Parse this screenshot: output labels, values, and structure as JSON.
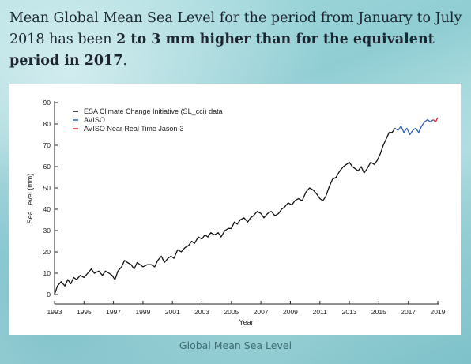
{
  "intro": {
    "text_a": "Mean Global Mean Sea Level for the period from January to July 2018 has been ",
    "text_bold": "2 to 3 mm higher than for the equivalent period in 2017",
    "text_end": "."
  },
  "caption": "Global Mean Sea Level",
  "chart_data": {
    "type": "line",
    "title": "",
    "xlabel": "Year",
    "ylabel": "Sea Level (mm)",
    "xlim": [
      1993,
      2019
    ],
    "ylim": [
      0,
      90
    ],
    "x_ticks": [
      "1993",
      "1995",
      "1997",
      "1999",
      "2001",
      "2003",
      "2005",
      "2007",
      "2009",
      "2011",
      "2013",
      "2015",
      "2017",
      "2019"
    ],
    "y_ticks": [
      "0",
      "10",
      "20",
      "30",
      "40",
      "50",
      "60",
      "70",
      "80",
      "90"
    ],
    "grid": false,
    "legend_position": "top-left",
    "series": [
      {
        "name": "ESA Climate Change Initiative (SL_cci) data",
        "color": "#111111",
        "points": [
          [
            1993.0,
            0
          ],
          [
            1993.2,
            4
          ],
          [
            1993.45,
            6
          ],
          [
            1993.7,
            4
          ],
          [
            1993.9,
            7
          ],
          [
            1994.1,
            5
          ],
          [
            1994.3,
            8
          ],
          [
            1994.5,
            7
          ],
          [
            1994.75,
            9
          ],
          [
            1995.0,
            8
          ],
          [
            1995.25,
            10
          ],
          [
            1995.5,
            12
          ],
          [
            1995.7,
            10
          ],
          [
            1996.0,
            11
          ],
          [
            1996.25,
            9
          ],
          [
            1996.45,
            11
          ],
          [
            1996.7,
            10
          ],
          [
            1996.9,
            9
          ],
          [
            1997.1,
            7
          ],
          [
            1997.3,
            11
          ],
          [
            1997.55,
            13
          ],
          [
            1997.75,
            16
          ],
          [
            1997.95,
            15
          ],
          [
            1998.2,
            14
          ],
          [
            1998.4,
            12
          ],
          [
            1998.6,
            15
          ],
          [
            1998.8,
            14
          ],
          [
            1999.0,
            13
          ],
          [
            1999.3,
            14
          ],
          [
            1999.55,
            14
          ],
          [
            1999.8,
            13
          ],
          [
            2000.0,
            16
          ],
          [
            2000.25,
            18
          ],
          [
            2000.45,
            15
          ],
          [
            2000.7,
            17
          ],
          [
            2000.9,
            18
          ],
          [
            2001.1,
            17
          ],
          [
            2001.35,
            21
          ],
          [
            2001.6,
            20
          ],
          [
            2001.85,
            22
          ],
          [
            2002.1,
            23
          ],
          [
            2002.3,
            25
          ],
          [
            2002.5,
            24
          ],
          [
            2002.75,
            27
          ],
          [
            2003.0,
            26
          ],
          [
            2003.2,
            28
          ],
          [
            2003.4,
            27
          ],
          [
            2003.6,
            29
          ],
          [
            2003.85,
            28
          ],
          [
            2004.1,
            29
          ],
          [
            2004.3,
            27
          ],
          [
            2004.55,
            30
          ],
          [
            2004.8,
            31
          ],
          [
            2005.0,
            31
          ],
          [
            2005.2,
            34
          ],
          [
            2005.4,
            33
          ],
          [
            2005.6,
            35
          ],
          [
            2005.85,
            36
          ],
          [
            2006.1,
            34
          ],
          [
            2006.3,
            36
          ],
          [
            2006.5,
            37
          ],
          [
            2006.75,
            39
          ],
          [
            2007.0,
            38
          ],
          [
            2007.2,
            36
          ],
          [
            2007.45,
            38
          ],
          [
            2007.7,
            39
          ],
          [
            2007.95,
            37
          ],
          [
            2008.2,
            38
          ],
          [
            2008.4,
            40
          ],
          [
            2008.6,
            41
          ],
          [
            2008.85,
            43
          ],
          [
            2009.1,
            42
          ],
          [
            2009.3,
            44
          ],
          [
            2009.55,
            45
          ],
          [
            2009.8,
            44
          ],
          [
            2010.05,
            48
          ],
          [
            2010.3,
            50
          ],
          [
            2010.55,
            49
          ],
          [
            2010.8,
            47
          ],
          [
            2011.0,
            45
          ],
          [
            2011.2,
            44
          ],
          [
            2011.4,
            46
          ],
          [
            2011.6,
            50
          ],
          [
            2011.85,
            54
          ],
          [
            2012.1,
            55
          ],
          [
            2012.35,
            58
          ],
          [
            2012.6,
            60
          ],
          [
            2012.8,
            61
          ],
          [
            2013.0,
            62
          ],
          [
            2013.2,
            60
          ],
          [
            2013.4,
            59
          ],
          [
            2013.6,
            58
          ],
          [
            2013.8,
            60
          ],
          [
            2014.0,
            57
          ],
          [
            2014.2,
            59
          ],
          [
            2014.45,
            62
          ],
          [
            2014.7,
            61
          ],
          [
            2014.9,
            63
          ],
          [
            2015.1,
            66
          ],
          [
            2015.3,
            70
          ],
          [
            2015.5,
            73
          ],
          [
            2015.7,
            76
          ],
          [
            2015.9,
            76
          ],
          [
            2016.1,
            78
          ]
        ]
      },
      {
        "name": "AVISO",
        "color": "#2f5fb3",
        "points": [
          [
            2016.1,
            78
          ],
          [
            2016.3,
            77
          ],
          [
            2016.5,
            79
          ],
          [
            2016.7,
            76
          ],
          [
            2016.9,
            78
          ],
          [
            2017.1,
            75
          ],
          [
            2017.3,
            77
          ],
          [
            2017.5,
            78
          ],
          [
            2017.7,
            76
          ],
          [
            2017.9,
            79
          ],
          [
            2018.1,
            81
          ],
          [
            2018.3,
            82
          ],
          [
            2018.5,
            81
          ],
          [
            2018.7,
            82
          ]
        ]
      },
      {
        "name": "AVISO Near Real Time Jason-3",
        "color": "#d9283a",
        "points": [
          [
            2018.7,
            82
          ],
          [
            2018.85,
            81
          ],
          [
            2019.0,
            83
          ]
        ]
      }
    ]
  }
}
